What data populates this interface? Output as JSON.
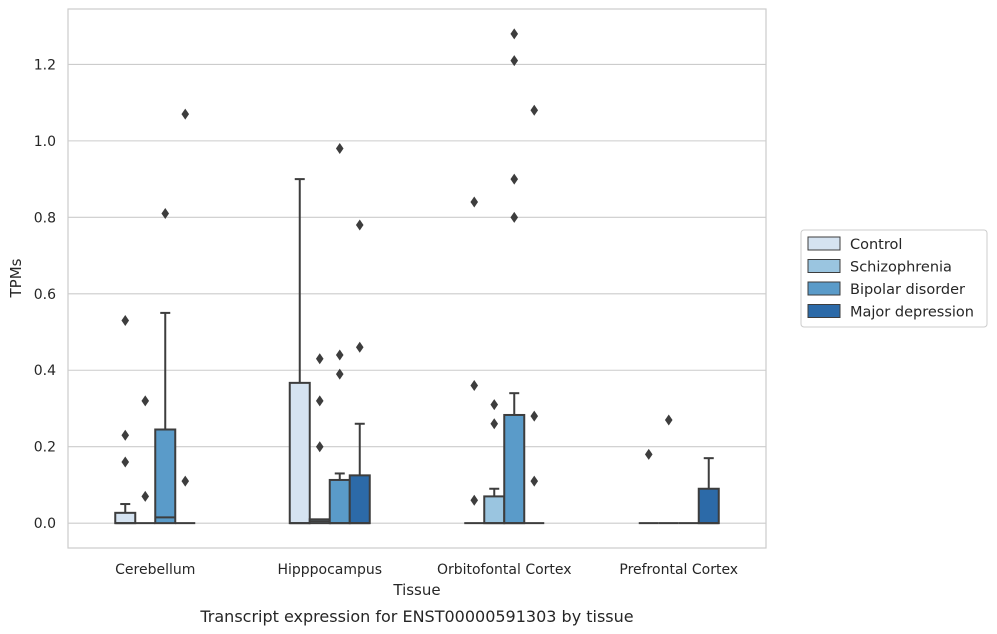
{
  "chart_data": {
    "type": "box",
    "title": "",
    "caption": "Transcript expression for ENST00000591303 by tissue",
    "xlabel": "Tissue",
    "ylabel": "TPMs",
    "ylim": [
      -0.065,
      1.345
    ],
    "yticks": [
      0.0,
      0.2,
      0.4,
      0.6,
      0.8,
      1.0,
      1.2
    ],
    "ytick_labels": [
      "0.0",
      "0.2",
      "0.4",
      "0.6",
      "0.8",
      "1.0",
      "1.2"
    ],
    "grid": "horizontal",
    "legend_position": "right",
    "categories": [
      "Cerebellum",
      "Hipppocampus",
      "Orbitofontal Cortex",
      "Prefrontal Cortex"
    ],
    "series": [
      {
        "name": "Control",
        "color": "#d5e3f1",
        "boxes": [
          {
            "q1": 0,
            "median": 0,
            "q3": 0.027,
            "whisker_low": 0,
            "whisker_high": 0.05,
            "outliers": [
              0.16,
              0.23,
              0.53
            ]
          },
          {
            "q1": 0,
            "median": 0,
            "q3": 0.367,
            "whisker_low": 0,
            "whisker_high": 0.9,
            "outliers": []
          },
          {
            "q1": 0,
            "median": 0,
            "q3": 0,
            "whisker_low": 0,
            "whisker_high": 0,
            "outliers": [
              0.06,
              0.36,
              0.84
            ]
          },
          {
            "q1": 0,
            "median": 0,
            "q3": 0,
            "whisker_low": 0,
            "whisker_high": 0,
            "outliers": [
              0.18
            ]
          }
        ]
      },
      {
        "name": "Schizophrenia",
        "color": "#9ac5e0",
        "boxes": [
          {
            "q1": 0,
            "median": 0,
            "q3": 0,
            "whisker_low": 0,
            "whisker_high": 0,
            "outliers": [
              0.07,
              0.32
            ]
          },
          {
            "q1": 0,
            "median": 0.005,
            "q3": 0.01,
            "whisker_low": 0,
            "whisker_high": 0.01,
            "outliers": [
              0.2,
              0.32,
              0.43
            ]
          },
          {
            "q1": 0,
            "median": 0,
            "q3": 0.07,
            "whisker_low": 0,
            "whisker_high": 0.09,
            "outliers": [
              0.26,
              0.31
            ]
          },
          {
            "q1": 0,
            "median": 0,
            "q3": 0,
            "whisker_low": 0,
            "whisker_high": 0,
            "outliers": [
              0.27
            ]
          }
        ]
      },
      {
        "name": "Bipolar disorder",
        "color": "#5a9bc9",
        "boxes": [
          {
            "q1": 0,
            "median": 0.015,
            "q3": 0.245,
            "whisker_low": 0,
            "whisker_high": 0.55,
            "outliers": [
              0.81
            ]
          },
          {
            "q1": 0,
            "median": 0,
            "q3": 0.113,
            "whisker_low": 0,
            "whisker_high": 0.13,
            "outliers": [
              0.39,
              0.44,
              0.98
            ]
          },
          {
            "q1": 0,
            "median": 0,
            "q3": 0.283,
            "whisker_low": 0,
            "whisker_high": 0.34,
            "outliers": [
              0.8,
              0.9,
              1.21,
              1.28
            ]
          },
          {
            "q1": 0,
            "median": 0,
            "q3": 0,
            "whisker_low": 0,
            "whisker_high": 0,
            "outliers": []
          }
        ]
      },
      {
        "name": "Major depression",
        "color": "#2c6aa8",
        "boxes": [
          {
            "q1": 0,
            "median": 0,
            "q3": 0,
            "whisker_low": 0,
            "whisker_high": 0,
            "outliers": [
              0.11,
              1.07
            ]
          },
          {
            "q1": 0,
            "median": 0,
            "q3": 0.125,
            "whisker_low": 0,
            "whisker_high": 0.26,
            "outliers": [
              0.46,
              0.78
            ]
          },
          {
            "q1": 0,
            "median": 0,
            "q3": 0,
            "whisker_low": 0,
            "whisker_high": 0,
            "outliers": [
              0.11,
              0.28,
              1.08
            ]
          },
          {
            "q1": 0,
            "median": 0,
            "q3": 0.09,
            "whisker_low": 0,
            "whisker_high": 0.17,
            "outliers": []
          }
        ]
      }
    ]
  }
}
